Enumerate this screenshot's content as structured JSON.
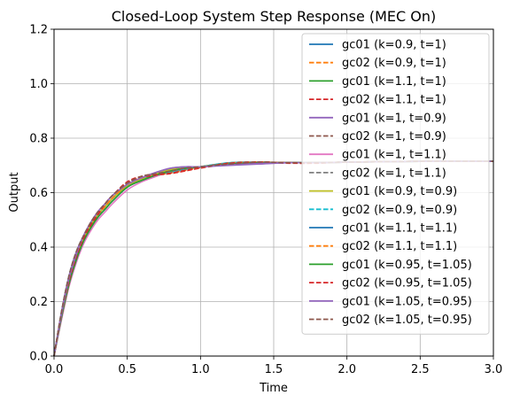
{
  "chart_data": {
    "type": "line",
    "title": "Closed-Loop System Step Response (MEC On)",
    "xlabel": "Time",
    "ylabel": "Output",
    "xlim": [
      0,
      3
    ],
    "ylim": [
      0,
      1.2
    ],
    "xticks": [
      "0.0",
      "0.5",
      "1.0",
      "1.5",
      "2.0",
      "2.5",
      "3.0"
    ],
    "yticks": [
      "0.0",
      "0.2",
      "0.4",
      "0.6",
      "0.8",
      "1.0",
      "1.2"
    ],
    "grid": true,
    "legend_position": "top-right",
    "x": [
      0,
      0.05,
      0.1,
      0.15,
      0.2,
      0.25,
      0.3,
      0.35,
      0.4,
      0.5,
      0.6,
      0.7,
      0.8,
      0.9,
      1.0,
      1.2,
      1.4,
      1.6,
      1.8,
      2.0,
      2.5,
      3.0
    ],
    "series": [
      {
        "name": "gc01 (k=0.9, t=1)",
        "color": "#1f77b4",
        "dash": "solid",
        "values": [
          0,
          0.14,
          0.26,
          0.35,
          0.42,
          0.47,
          0.51,
          0.54,
          0.57,
          0.62,
          0.65,
          0.67,
          0.685,
          0.69,
          0.695,
          0.705,
          0.71,
          0.71,
          0.71,
          0.712,
          0.715,
          0.715
        ]
      },
      {
        "name": "gc02 (k=0.9, t=1)",
        "color": "#ff7f0e",
        "dash": "dashed",
        "values": [
          0,
          0.15,
          0.27,
          0.36,
          0.43,
          0.48,
          0.52,
          0.55,
          0.58,
          0.63,
          0.655,
          0.665,
          0.675,
          0.685,
          0.695,
          0.71,
          0.712,
          0.71,
          0.71,
          0.712,
          0.715,
          0.715
        ]
      },
      {
        "name": "gc01 (k=1.1, t=1)",
        "color": "#2ca02c",
        "dash": "solid",
        "values": [
          0,
          0.15,
          0.27,
          0.36,
          0.43,
          0.48,
          0.52,
          0.55,
          0.58,
          0.63,
          0.65,
          0.665,
          0.68,
          0.69,
          0.695,
          0.705,
          0.71,
          0.71,
          0.71,
          0.712,
          0.715,
          0.715
        ]
      },
      {
        "name": "gc02 (k=1.1, t=1)",
        "color": "#d62728",
        "dash": "dashed",
        "values": [
          0,
          0.15,
          0.27,
          0.36,
          0.43,
          0.48,
          0.52,
          0.56,
          0.59,
          0.64,
          0.66,
          0.665,
          0.67,
          0.68,
          0.69,
          0.705,
          0.71,
          0.708,
          0.708,
          0.712,
          0.715,
          0.715
        ]
      },
      {
        "name": "gc01 (k=1, t=0.9)",
        "color": "#9467bd",
        "dash": "solid",
        "values": [
          0,
          0.16,
          0.29,
          0.38,
          0.44,
          0.49,
          0.53,
          0.56,
          0.59,
          0.63,
          0.655,
          0.675,
          0.69,
          0.695,
          0.695,
          0.7,
          0.705,
          0.71,
          0.71,
          0.712,
          0.715,
          0.715
        ]
      },
      {
        "name": "gc02 (k=1, t=0.9)",
        "color": "#8c564b",
        "dash": "dashed",
        "values": [
          0,
          0.16,
          0.29,
          0.38,
          0.44,
          0.49,
          0.53,
          0.56,
          0.59,
          0.635,
          0.66,
          0.67,
          0.68,
          0.69,
          0.695,
          0.705,
          0.712,
          0.71,
          0.71,
          0.712,
          0.715,
          0.715
        ]
      },
      {
        "name": "gc01 (k=1, t=1.1)",
        "color": "#e377c2",
        "dash": "solid",
        "values": [
          0,
          0.13,
          0.25,
          0.34,
          0.41,
          0.46,
          0.5,
          0.53,
          0.56,
          0.61,
          0.64,
          0.66,
          0.68,
          0.69,
          0.695,
          0.705,
          0.71,
          0.71,
          0.71,
          0.712,
          0.715,
          0.715
        ]
      },
      {
        "name": "gc02 (k=1, t=1.1)",
        "color": "#7f7f7f",
        "dash": "dashed",
        "values": [
          0,
          0.14,
          0.26,
          0.35,
          0.42,
          0.47,
          0.51,
          0.55,
          0.58,
          0.625,
          0.65,
          0.665,
          0.675,
          0.685,
          0.695,
          0.71,
          0.712,
          0.71,
          0.71,
          0.712,
          0.715,
          0.715
        ]
      },
      {
        "name": "gc01 (k=0.9, t=0.9)",
        "color": "#bcbd22",
        "dash": "solid",
        "values": [
          0,
          0.15,
          0.28,
          0.37,
          0.43,
          0.48,
          0.52,
          0.55,
          0.58,
          0.625,
          0.65,
          0.67,
          0.685,
          0.69,
          0.695,
          0.705,
          0.71,
          0.71,
          0.71,
          0.712,
          0.715,
          0.715
        ]
      },
      {
        "name": "gc02 (k=0.9, t=0.9)",
        "color": "#17becf",
        "dash": "dashed",
        "values": [
          0,
          0.16,
          0.29,
          0.38,
          0.44,
          0.49,
          0.53,
          0.56,
          0.59,
          0.635,
          0.655,
          0.665,
          0.675,
          0.685,
          0.695,
          0.71,
          0.712,
          0.71,
          0.71,
          0.712,
          0.715,
          0.715
        ]
      },
      {
        "name": "gc01 (k=1.1, t=1.1)",
        "color": "#1f77b4",
        "dash": "solid",
        "values": [
          0,
          0.14,
          0.26,
          0.35,
          0.42,
          0.47,
          0.51,
          0.54,
          0.57,
          0.62,
          0.645,
          0.665,
          0.68,
          0.69,
          0.695,
          0.705,
          0.71,
          0.71,
          0.71,
          0.712,
          0.715,
          0.715
        ]
      },
      {
        "name": "gc02 (k=1.1, t=1.1)",
        "color": "#ff7f0e",
        "dash": "dashed",
        "values": [
          0,
          0.14,
          0.26,
          0.36,
          0.43,
          0.48,
          0.52,
          0.55,
          0.58,
          0.63,
          0.655,
          0.665,
          0.672,
          0.682,
          0.692,
          0.708,
          0.712,
          0.71,
          0.71,
          0.712,
          0.715,
          0.715
        ]
      },
      {
        "name": "gc01 (k=0.95, t=1.05)",
        "color": "#2ca02c",
        "dash": "solid",
        "values": [
          0,
          0.14,
          0.26,
          0.35,
          0.42,
          0.47,
          0.51,
          0.54,
          0.57,
          0.62,
          0.645,
          0.665,
          0.68,
          0.69,
          0.695,
          0.705,
          0.71,
          0.71,
          0.71,
          0.712,
          0.715,
          0.715
        ]
      },
      {
        "name": "gc02 (k=0.95, t=1.05)",
        "color": "#d62728",
        "dash": "dashed",
        "values": [
          0,
          0.15,
          0.27,
          0.36,
          0.43,
          0.48,
          0.52,
          0.56,
          0.59,
          0.635,
          0.655,
          0.665,
          0.672,
          0.682,
          0.692,
          0.708,
          0.712,
          0.71,
          0.71,
          0.712,
          0.715,
          0.715
        ]
      },
      {
        "name": "gc01 (k=1.05, t=0.95)",
        "color": "#9467bd",
        "dash": "solid",
        "values": [
          0,
          0.15,
          0.28,
          0.37,
          0.44,
          0.49,
          0.53,
          0.56,
          0.59,
          0.63,
          0.655,
          0.675,
          0.69,
          0.695,
          0.695,
          0.702,
          0.707,
          0.71,
          0.71,
          0.712,
          0.715,
          0.715
        ]
      },
      {
        "name": "gc02 (k=1.05, t=0.95)",
        "color": "#8c564b",
        "dash": "dashed",
        "values": [
          0,
          0.16,
          0.29,
          0.38,
          0.44,
          0.49,
          0.53,
          0.56,
          0.59,
          0.635,
          0.66,
          0.67,
          0.68,
          0.69,
          0.695,
          0.705,
          0.712,
          0.71,
          0.71,
          0.712,
          0.715,
          0.715
        ]
      }
    ]
  }
}
